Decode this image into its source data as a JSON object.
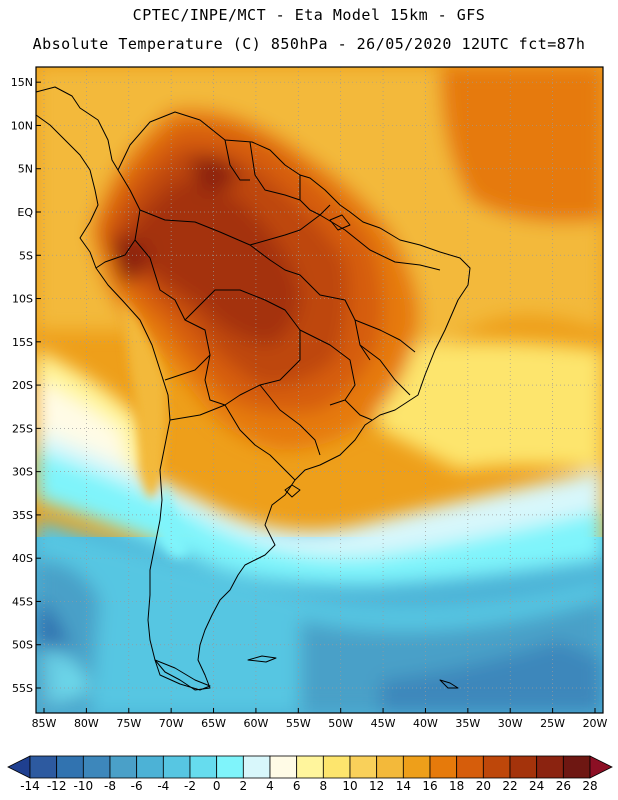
{
  "header": {
    "line1": "CPTEC/INPE/MCT -  Eta Model 15km - GFS",
    "line2": "Absolute Temperature (C) 850hPa - 26/05/2020 12UTC fct=87h"
  },
  "map": {
    "variable": "Absolute Temperature (C) 850hPa",
    "region": "South America",
    "longitude_range": [
      -85,
      -20
    ],
    "latitude_range": [
      -58,
      17
    ],
    "lat_ticks": [
      "15N",
      "10N",
      "5N",
      "EQ",
      "5S",
      "10S",
      "15S",
      "20S",
      "25S",
      "30S",
      "35S",
      "40S",
      "45S",
      "50S",
      "55S"
    ],
    "lat_values": [
      15,
      10,
      5,
      0,
      -5,
      -10,
      -15,
      -20,
      -25,
      -30,
      -35,
      -40,
      -45,
      -50,
      -55
    ],
    "lon_ticks": [
      "85W",
      "80W",
      "75W",
      "70W",
      "65W",
      "60W",
      "55W",
      "50W",
      "45W",
      "40W",
      "35W",
      "30W",
      "25W",
      "20W"
    ],
    "lon_values": [
      -85,
      -80,
      -75,
      -70,
      -65,
      -60,
      -55,
      -50,
      -45,
      -40,
      -35,
      -30,
      -25,
      -20
    ]
  },
  "colorbar": {
    "labels": [
      "-14",
      "-12",
      "-10",
      "-8",
      "-6",
      "-4",
      "-2",
      "0",
      "2",
      "4",
      "6",
      "8",
      "10",
      "12",
      "14",
      "16",
      "18",
      "20",
      "22",
      "24",
      "26",
      "28"
    ],
    "colors": [
      "#1f3f8f",
      "#2d5aa0",
      "#3173b0",
      "#3d87bb",
      "#4aa0c8",
      "#4cb2d6",
      "#57c6e2",
      "#66dcee",
      "#7ff4fb",
      "#d8f7fb",
      "#fffbe6",
      "#fff59c",
      "#fde56d",
      "#f9d05a",
      "#f3b93a",
      "#ee9f1a",
      "#e67a0b",
      "#d65d0b",
      "#be470a",
      "#a4330b",
      "#8b2310",
      "#6e1712",
      "#8c0f24"
    ]
  }
}
